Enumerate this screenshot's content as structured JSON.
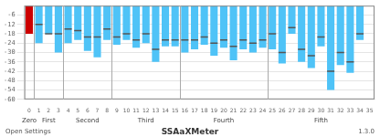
{
  "chart_data": {
    "type": "bar",
    "categories": [
      "0",
      "1",
      "2",
      "3",
      "4",
      "5",
      "6",
      "7",
      "8",
      "9",
      "10",
      "11",
      "12",
      "13",
      "14",
      "15",
      "16",
      "17",
      "18",
      "19",
      "20",
      "21",
      "22",
      "23",
      "24",
      "25",
      "26",
      "27",
      "28",
      "29",
      "30",
      "31",
      "32",
      "33",
      "34",
      "35"
    ],
    "groups": [
      {
        "label": "Zero",
        "categories": [
          "0"
        ]
      },
      {
        "label": "First",
        "categories": [
          "1",
          "2",
          "3"
        ]
      },
      {
        "label": "Second",
        "categories": [
          "4",
          "5",
          "6",
          "7",
          "8"
        ]
      },
      {
        "label": "Third",
        "categories": [
          "9",
          "10",
          "11",
          "12",
          "13",
          "14",
          "15"
        ]
      },
      {
        "label": "Fourth",
        "categories": [
          "16",
          "17",
          "18",
          "19",
          "20",
          "21",
          "22",
          "23",
          "24"
        ]
      },
      {
        "label": "Fifth",
        "categories": [
          "25",
          "26",
          "27",
          "28",
          "29",
          "30",
          "31",
          "32",
          "33",
          "34",
          "35"
        ]
      }
    ],
    "series": [
      {
        "type": "bar",
        "colors": [
          "#cc0000",
          "#4fc3f7",
          "#4fc3f7",
          "#4fc3f7",
          "#4fc3f7",
          "#4fc3f7",
          "#4fc3f7",
          "#4fc3f7",
          "#4fc3f7",
          "#4fc3f7",
          "#4fc3f7",
          "#4fc3f7",
          "#4fc3f7",
          "#4fc3f7",
          "#4fc3f7",
          "#4fc3f7",
          "#4fc3f7",
          "#4fc3f7",
          "#4fc3f7",
          "#4fc3f7",
          "#4fc3f7",
          "#4fc3f7",
          "#4fc3f7",
          "#4fc3f7",
          "#4fc3f7",
          "#4fc3f7",
          "#4fc3f7",
          "#4fc3f7",
          "#4fc3f7",
          "#4fc3f7",
          "#4fc3f7",
          "#4fc3f7",
          "#4fc3f7",
          "#4fc3f7",
          "#4fc3f7",
          "#4fc3f7"
        ],
        "values": [
          -18,
          -24,
          -18,
          -30,
          -24,
          -22,
          -29,
          -33,
          -22,
          -25,
          -22,
          -27,
          -24,
          -36,
          -26,
          -26,
          -30,
          -28,
          -25,
          -32,
          -27,
          -35,
          -28,
          -30,
          -27,
          -28,
          -37,
          -18,
          -36,
          -40,
          -26,
          -54,
          -38,
          -43,
          -22,
          null
        ]
      },
      {
        "type": "line",
        "marker": "line",
        "line_style": "none",
        "colors": [
          "#cc0000",
          "#555555",
          "#555555",
          "#555555",
          "#555555",
          "#555555",
          "#555555",
          "#555555",
          "#555555",
          "#555555",
          "#555555",
          "#555555",
          "#555555",
          "#555555",
          "#555555",
          "#555555",
          "#555555",
          "#555555",
          "#555555",
          "#555555",
          "#555555",
          "#555555",
          "#555555",
          "#555555",
          "#555555",
          "#555555",
          "#555555",
          "#555555",
          "#555555",
          "#555555",
          "#555555",
          "#555555",
          "#555555",
          "#555555",
          "#555555",
          "#555555"
        ],
        "values": [
          -6,
          -12,
          -18,
          -18,
          -15,
          -16,
          -20,
          -20,
          -15,
          -20,
          -18,
          -22,
          -18,
          -28,
          -22,
          -22,
          -22,
          -22,
          -20,
          -24,
          -22,
          -26,
          -22,
          -24,
          -22,
          -18,
          -30,
          -14,
          -28,
          -32,
          -20,
          -42,
          -30,
          -36,
          -18,
          null
        ]
      }
    ],
    "ylim": [
      -60,
      0
    ],
    "yticks": [
      -60,
      -54,
      -48,
      -42,
      -36,
      -30,
      -24,
      -18,
      -12,
      -6
    ],
    "grid": true,
    "annotations": [
      "Open Settings",
      "SSAaXMeter",
      "1.3.0"
    ]
  }
}
